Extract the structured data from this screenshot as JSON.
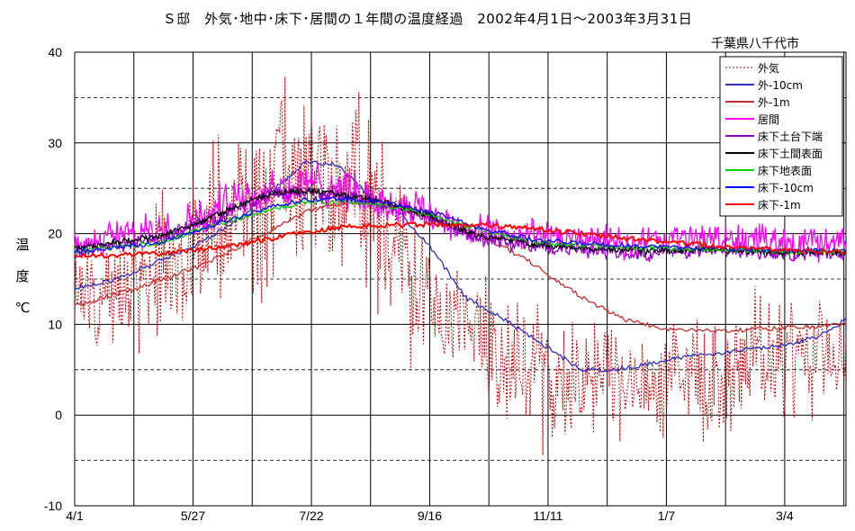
{
  "chart_data": {
    "type": "line",
    "title": "Ｓ邸　外気･地中･床下･居間の１年間の温度経過　2002年4月1日～2003年3月31日",
    "location": "千葉県八千代市",
    "ylabel": "温　度　℃",
    "xlabel": "",
    "ylim": [
      -10,
      40
    ],
    "yticks": [
      40,
      30,
      20,
      10,
      0,
      -10
    ],
    "xtick_labels": [
      "4/1",
      "5/27",
      "7/22",
      "9/16",
      "11/11",
      "1/7",
      "3/4"
    ],
    "x_day_range": [
      0,
      365
    ],
    "grid": true,
    "legend_position": "top-right",
    "series": [
      {
        "name": "外気",
        "color": "#c00000",
        "style": "dotted",
        "volatile": true,
        "base": [
          [
            0,
            13
          ],
          [
            30,
            15
          ],
          [
            56,
            18
          ],
          [
            80,
            22
          ],
          [
            100,
            26
          ],
          [
            115,
            26
          ],
          [
            130,
            25
          ],
          [
            150,
            20
          ],
          [
            165,
            14
          ],
          [
            180,
            10
          ],
          [
            200,
            8
          ],
          [
            225,
            4
          ],
          [
            245,
            3
          ],
          [
            265,
            3
          ],
          [
            290,
            4
          ],
          [
            310,
            5
          ],
          [
            340,
            6
          ],
          [
            365,
            8
          ]
        ],
        "amp": [
          [
            0,
            7
          ],
          [
            56,
            9
          ],
          [
            90,
            12
          ],
          [
            140,
            10
          ],
          [
            180,
            8
          ],
          [
            250,
            8
          ],
          [
            365,
            7
          ]
        ]
      },
      {
        "name": "外-10cm",
        "color": "#3030c0",
        "style": "solid",
        "volatile": false,
        "values": [
          [
            0,
            14
          ],
          [
            20,
            15
          ],
          [
            45,
            17.5
          ],
          [
            60,
            19
          ],
          [
            80,
            22
          ],
          [
            95,
            25
          ],
          [
            110,
            28
          ],
          [
            125,
            27.5
          ],
          [
            140,
            24
          ],
          [
            155,
            22
          ],
          [
            170,
            18
          ],
          [
            185,
            13
          ],
          [
            200,
            11
          ],
          [
            220,
            8
          ],
          [
            240,
            5
          ],
          [
            255,
            5
          ],
          [
            270,
            5.5
          ],
          [
            290,
            6.5
          ],
          [
            310,
            7
          ],
          [
            330,
            7.5
          ],
          [
            350,
            8.5
          ],
          [
            365,
            10.5
          ]
        ]
      },
      {
        "name": "外-1m",
        "color": "#c03030",
        "style": "solid",
        "volatile": false,
        "values": [
          [
            0,
            12
          ],
          [
            30,
            14
          ],
          [
            60,
            16.5
          ],
          [
            90,
            20
          ],
          [
            110,
            22.5
          ],
          [
            130,
            23.5
          ],
          [
            150,
            23
          ],
          [
            170,
            21.5
          ],
          [
            190,
            20
          ],
          [
            215,
            17
          ],
          [
            240,
            13
          ],
          [
            260,
            10.5
          ],
          [
            280,
            9.5
          ],
          [
            300,
            9.3
          ],
          [
            330,
            9.5
          ],
          [
            365,
            10
          ]
        ]
      },
      {
        "name": "居間",
        "color": "#ff00ff",
        "style": "solid",
        "volatile": true,
        "base": [
          [
            0,
            19
          ],
          [
            40,
            20.5
          ],
          [
            60,
            22
          ],
          [
            90,
            25
          ],
          [
            110,
            25.5
          ],
          [
            130,
            24.5
          ],
          [
            150,
            23.5
          ],
          [
            170,
            22
          ],
          [
            190,
            20
          ],
          [
            220,
            19.5
          ],
          [
            260,
            19
          ],
          [
            300,
            19.5
          ],
          [
            340,
            19
          ],
          [
            365,
            19.5
          ]
        ],
        "amp": [
          [
            0,
            1.5
          ],
          [
            80,
            3
          ],
          [
            130,
            2.5
          ],
          [
            200,
            2
          ],
          [
            365,
            2
          ]
        ]
      },
      {
        "name": "床下土台下端",
        "color": "#9000c0",
        "style": "solid",
        "volatile": true,
        "base": [
          [
            0,
            18
          ],
          [
            40,
            19.5
          ],
          [
            60,
            21
          ],
          [
            90,
            24
          ],
          [
            110,
            24.5
          ],
          [
            130,
            24
          ],
          [
            150,
            23
          ],
          [
            170,
            21.5
          ],
          [
            190,
            19.5
          ],
          [
            220,
            18.5
          ],
          [
            260,
            18
          ],
          [
            300,
            18
          ],
          [
            340,
            17.8
          ],
          [
            365,
            17.8
          ]
        ],
        "amp": [
          [
            0,
            0.8
          ],
          [
            100,
            1
          ],
          [
            365,
            0.8
          ]
        ]
      },
      {
        "name": "床下土間表面",
        "color": "#000000",
        "style": "solid",
        "volatile": true,
        "base": [
          [
            0,
            18.3
          ],
          [
            40,
            19.8
          ],
          [
            60,
            21.3
          ],
          [
            90,
            24.3
          ],
          [
            110,
            24.8
          ],
          [
            130,
            24.2
          ],
          [
            150,
            23.2
          ],
          [
            170,
            21.8
          ],
          [
            190,
            19.8
          ],
          [
            220,
            18.8
          ],
          [
            260,
            18.2
          ],
          [
            300,
            18.2
          ],
          [
            340,
            17.9
          ],
          [
            365,
            17.9
          ]
        ],
        "amp": [
          [
            0,
            0.4
          ],
          [
            365,
            0.4
          ]
        ]
      },
      {
        "name": "床下地表面",
        "color": "#00d000",
        "style": "solid",
        "volatile": false,
        "values": [
          [
            0,
            18
          ],
          [
            40,
            19
          ],
          [
            60,
            20.5
          ],
          [
            90,
            22.5
          ],
          [
            110,
            23.5
          ],
          [
            130,
            23.5
          ],
          [
            150,
            23
          ],
          [
            170,
            22
          ],
          [
            190,
            20.5
          ],
          [
            220,
            19
          ],
          [
            260,
            18.5
          ],
          [
            300,
            18.3
          ],
          [
            340,
            18
          ],
          [
            365,
            18
          ]
        ]
      },
      {
        "name": "床下-10cm",
        "color": "#0000ff",
        "style": "solid",
        "volatile": false,
        "values": [
          [
            0,
            18
          ],
          [
            40,
            19
          ],
          [
            60,
            20.5
          ],
          [
            90,
            22.8
          ],
          [
            110,
            23.8
          ],
          [
            130,
            23.8
          ],
          [
            150,
            23.3
          ],
          [
            170,
            22.3
          ],
          [
            190,
            20.7
          ],
          [
            220,
            19.2
          ],
          [
            260,
            18.7
          ],
          [
            300,
            18.4
          ],
          [
            340,
            18.1
          ],
          [
            365,
            18.1
          ]
        ]
      },
      {
        "name": "床下-1m",
        "color": "#ff0000",
        "style": "solid",
        "volatile": false,
        "values": [
          [
            0,
            17.5
          ],
          [
            40,
            17.8
          ],
          [
            70,
            18.5
          ],
          [
            100,
            19.8
          ],
          [
            130,
            20.8
          ],
          [
            160,
            21
          ],
          [
            190,
            21
          ],
          [
            220,
            20.5
          ],
          [
            260,
            19.5
          ],
          [
            300,
            18.7
          ],
          [
            340,
            18.1
          ],
          [
            365,
            18
          ]
        ]
      }
    ]
  }
}
